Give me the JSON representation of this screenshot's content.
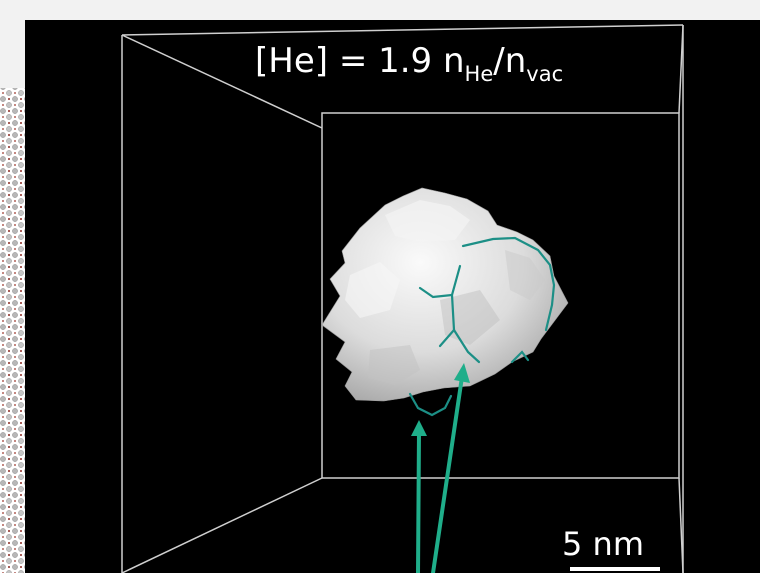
{
  "annotation": {
    "title_prefix": "[He] = 1.9 n",
    "title_sub1": "He",
    "title_mid": "/n",
    "title_sub2": "vac"
  },
  "scale_bar": {
    "label": "5 nm"
  },
  "colors": {
    "background": "#000000",
    "frame": "#d8d8d8",
    "dislocation_line": "#1c8f86",
    "arrow": "#1fae8a",
    "bubble": "#e6e6e6",
    "lattice_atom": "#b9b9b9",
    "lattice_interstitial": "#8b2a22"
  }
}
